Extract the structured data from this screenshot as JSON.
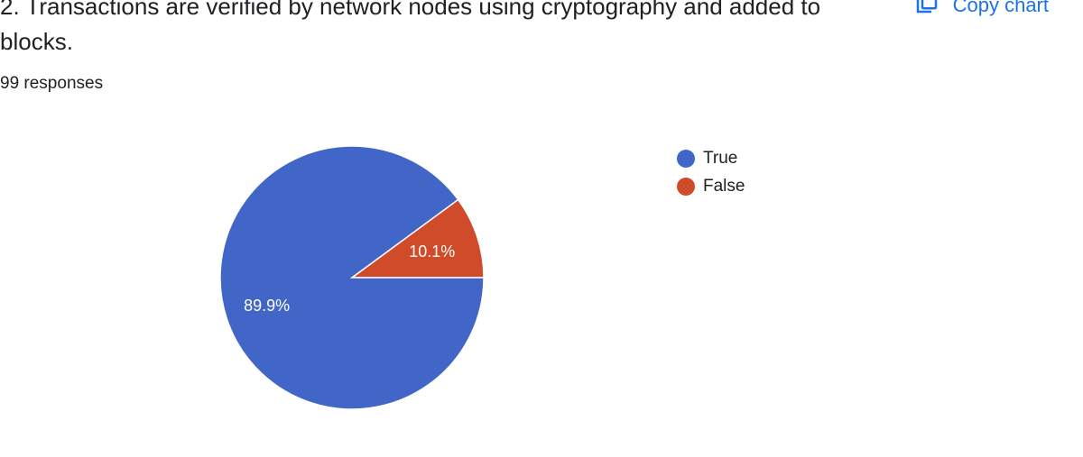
{
  "question": {
    "title": "2. Transactions are verified by network nodes using cryptography and added to blocks.",
    "responses": "99 responses"
  },
  "toolbar": {
    "copy_label": "Copy chart",
    "copy_icon": "copy-icon",
    "accent": "#1a73e8"
  },
  "chart_data": {
    "type": "pie",
    "labels": [
      "True",
      "False"
    ],
    "values": [
      89.9,
      10.1
    ],
    "slice_labels": [
      "89.9%",
      "10.1%"
    ],
    "colors": [
      "#4166c8",
      "#d04b29"
    ],
    "legend_position": "right"
  }
}
